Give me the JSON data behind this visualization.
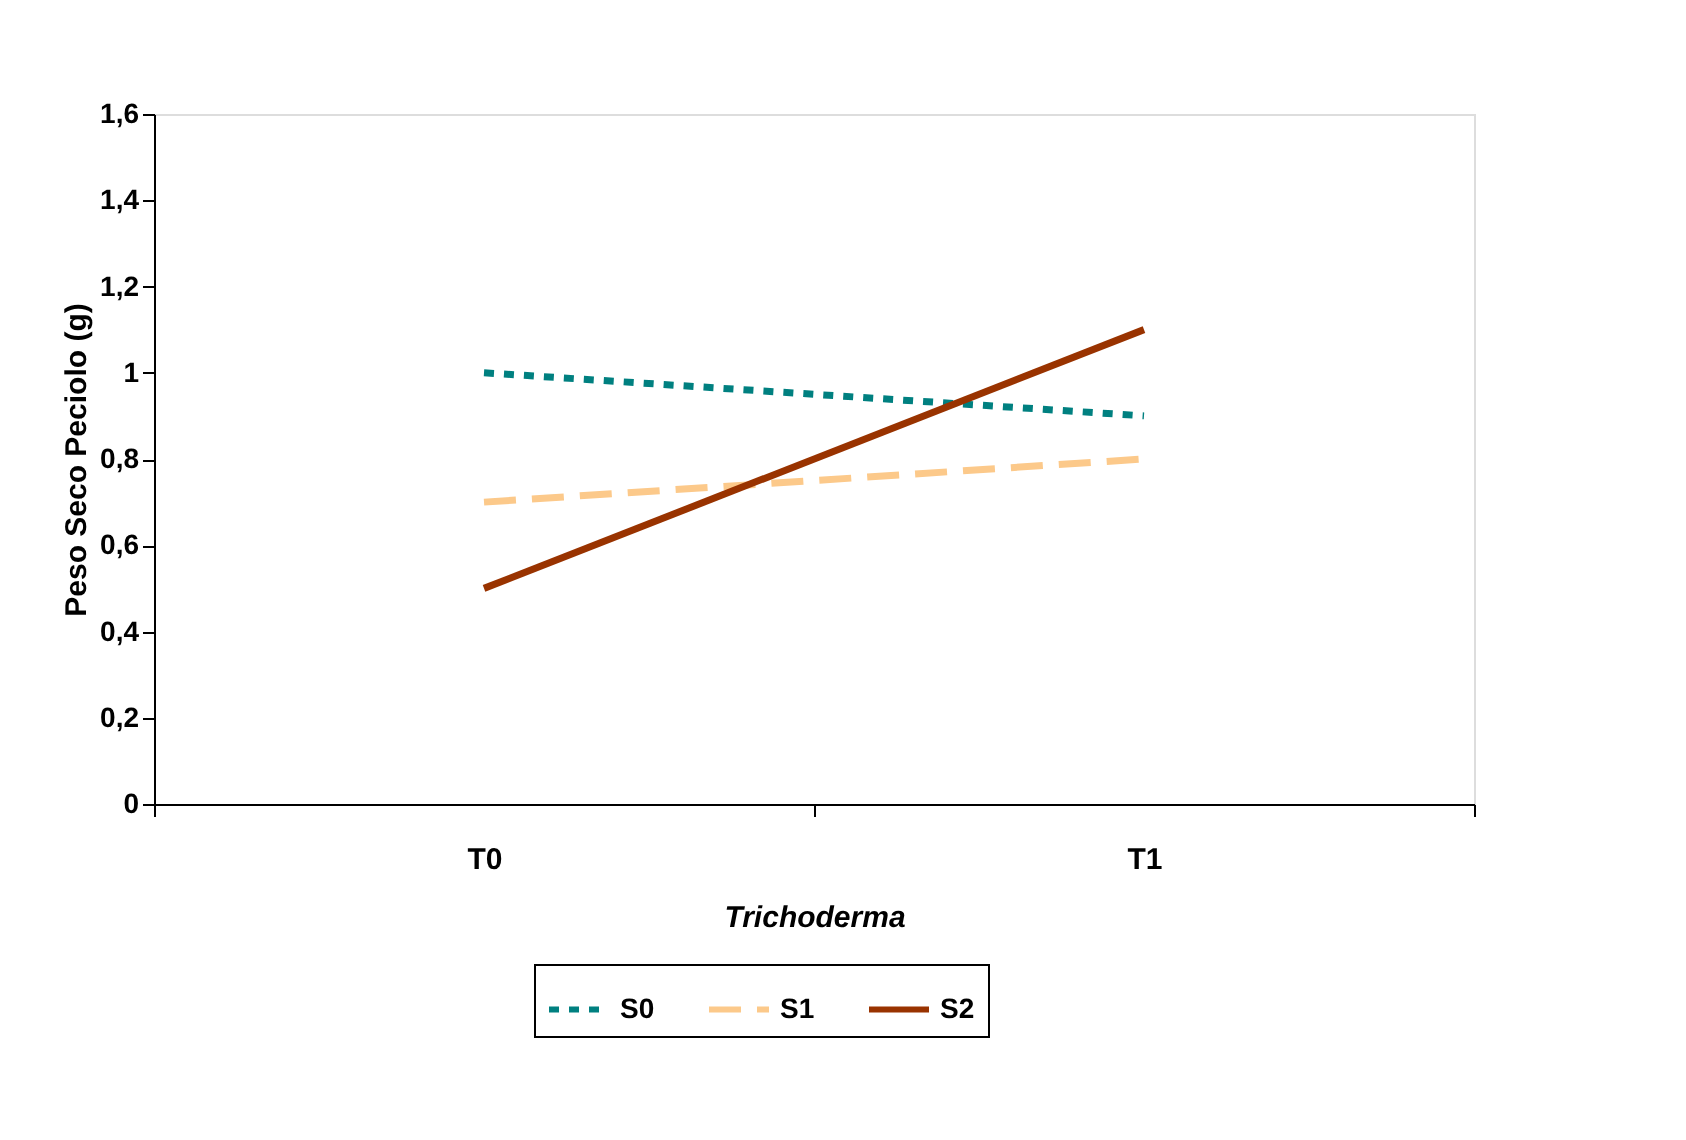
{
  "chart_data": {
    "type": "line",
    "xlabel": "Trichoderma",
    "ylabel": "Peso Seco Peciolo (g)",
    "categories": [
      "T0",
      "T1"
    ],
    "series": [
      {
        "name": "S0",
        "color": "#008080",
        "values": [
          1.0,
          0.9
        ],
        "line_style": "dotted"
      },
      {
        "name": "S1",
        "color": "#fcc98a",
        "values": [
          0.7,
          0.8
        ],
        "line_style": "dashed"
      },
      {
        "name": "S2",
        "color": "#993300",
        "values": [
          0.5,
          1.1
        ],
        "line_style": "solid"
      }
    ],
    "ylim": [
      0,
      1.6
    ],
    "yticks": [
      0,
      {
        "value": 0.2,
        "label": "0,2"
      },
      {
        "value": 0.4,
        "label": "0,4"
      },
      {
        "value": 0.6,
        "label": "0,6"
      },
      {
        "value": 0.8,
        "label": "0,8"
      },
      1,
      {
        "value": 1.2,
        "label": "1,2"
      },
      {
        "value": 1.4,
        "label": "1,4"
      },
      {
        "value": 1.6,
        "label": "1,6"
      }
    ],
    "grid": false,
    "legend": "bottom",
    "marker": "none"
  }
}
